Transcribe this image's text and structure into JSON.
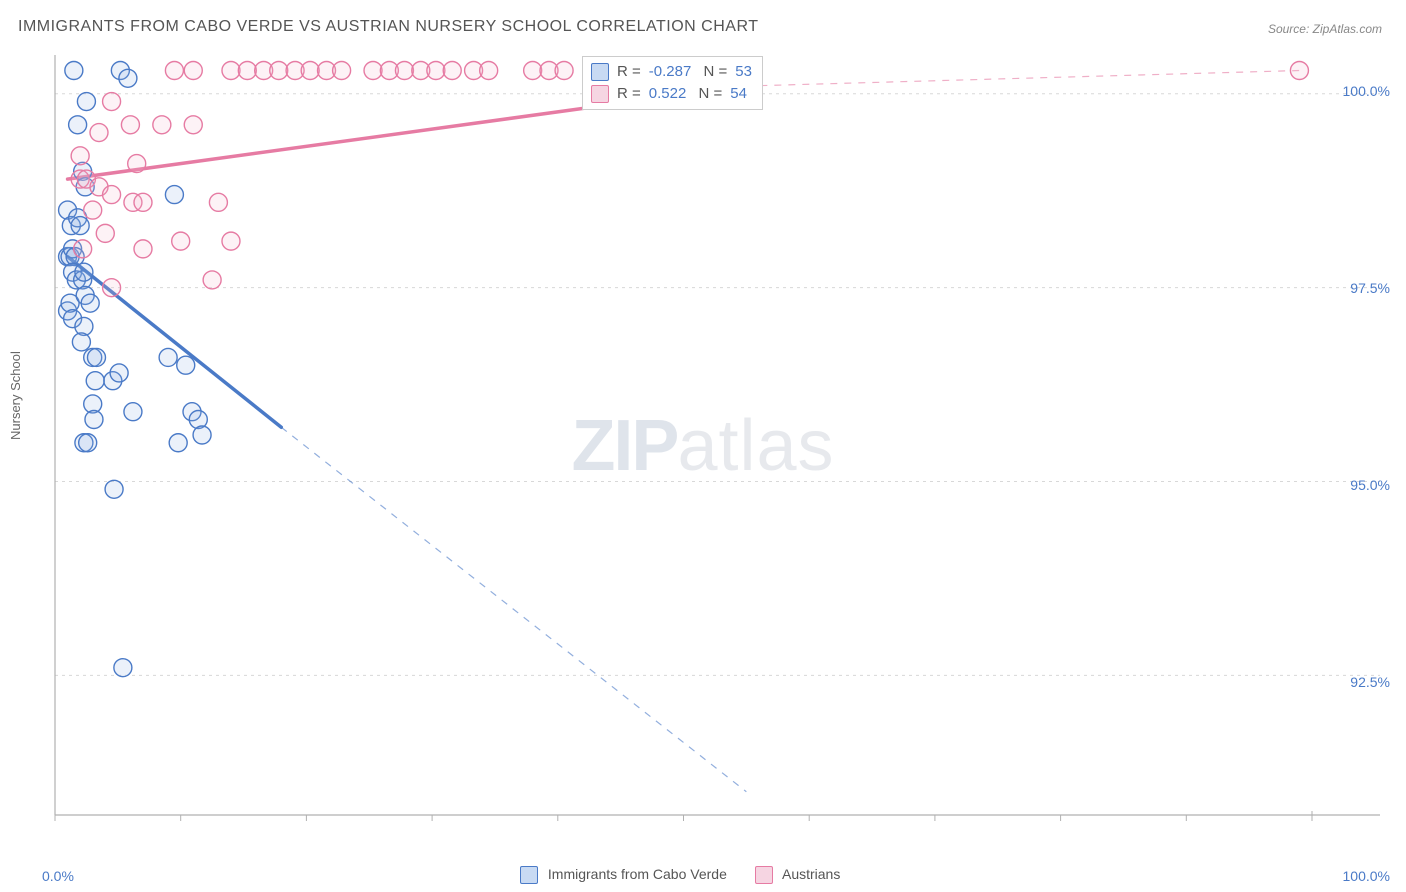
{
  "title": "IMMIGRANTS FROM CABO VERDE VS AUSTRIAN NURSERY SCHOOL CORRELATION CHART",
  "source": "Source: ZipAtlas.com",
  "ylabel": "Nursery School",
  "watermark": {
    "bold": "ZIP",
    "light": "atlas"
  },
  "chart": {
    "type": "scatter",
    "background_color": "#ffffff",
    "grid_color": "#d8d8d8",
    "axis_color": "#b0b0b0",
    "tick_color": "#4a7ac7",
    "xlim": [
      0,
      100
    ],
    "ylim": [
      90.7,
      100.5
    ],
    "yticks": [
      92.5,
      95.0,
      97.5,
      100.0
    ],
    "ytick_labels": [
      "92.5%",
      "95.0%",
      "97.5%",
      "100.0%"
    ],
    "xticks": [
      0,
      10,
      20,
      30,
      40,
      50,
      60,
      70,
      80,
      90,
      100
    ],
    "xtick_labels_shown": {
      "0": "0.0%",
      "100": "100.0%"
    },
    "marker_radius": 9,
    "marker_fill_opacity": 0.18,
    "marker_stroke_width": 1.4,
    "series": [
      {
        "name": "Immigrants from Cabo Verde",
        "color_stroke": "#4a7ac7",
        "color_fill": "#8fb0e6",
        "R": -0.287,
        "N": 53,
        "trend": {
          "solid_from": [
            1,
            97.9
          ],
          "solid_to": [
            18,
            95.7
          ],
          "dashed_to": [
            55,
            91.0
          ]
        },
        "points": [
          [
            1.5,
            100.3
          ],
          [
            5.2,
            100.3
          ],
          [
            5.8,
            100.2
          ],
          [
            2.5,
            99.9
          ],
          [
            1.8,
            99.6
          ],
          [
            2.2,
            99.0
          ],
          [
            2.4,
            98.8
          ],
          [
            1.0,
            98.5
          ],
          [
            1.3,
            98.3
          ],
          [
            1.8,
            98.4
          ],
          [
            2.0,
            98.3
          ],
          [
            1.0,
            97.9
          ],
          [
            1.2,
            97.9
          ],
          [
            1.4,
            98.0
          ],
          [
            1.6,
            97.9
          ],
          [
            1.4,
            97.7
          ],
          [
            1.7,
            97.6
          ],
          [
            2.2,
            97.6
          ],
          [
            2.3,
            97.7
          ],
          [
            1.0,
            97.2
          ],
          [
            1.2,
            97.3
          ],
          [
            1.4,
            97.1
          ],
          [
            2.4,
            97.4
          ],
          [
            2.8,
            97.3
          ],
          [
            2.3,
            97.0
          ],
          [
            2.1,
            96.8
          ],
          [
            9.5,
            98.7
          ],
          [
            3.0,
            96.6
          ],
          [
            3.3,
            96.6
          ],
          [
            9.0,
            96.6
          ],
          [
            3.2,
            96.3
          ],
          [
            4.6,
            96.3
          ],
          [
            5.1,
            96.4
          ],
          [
            10.4,
            96.5
          ],
          [
            3.0,
            96.0
          ],
          [
            3.1,
            95.8
          ],
          [
            6.2,
            95.9
          ],
          [
            10.9,
            95.9
          ],
          [
            11.4,
            95.8
          ],
          [
            2.3,
            95.5
          ],
          [
            2.6,
            95.5
          ],
          [
            9.8,
            95.5
          ],
          [
            11.7,
            95.6
          ],
          [
            4.7,
            94.9
          ],
          [
            5.4,
            92.6
          ]
        ]
      },
      {
        "name": "Austrians",
        "color_stroke": "#e67ba3",
        "color_fill": "#f4b6ce",
        "R": 0.522,
        "N": 54,
        "trend": {
          "solid_from": [
            1,
            98.9
          ],
          "solid_to": [
            55,
            100.1
          ],
          "dashed_to": [
            99,
            100.3
          ]
        },
        "points": [
          [
            9.5,
            100.3
          ],
          [
            11,
            100.3
          ],
          [
            14,
            100.3
          ],
          [
            15.3,
            100.3
          ],
          [
            16.6,
            100.3
          ],
          [
            17.8,
            100.3
          ],
          [
            19.1,
            100.3
          ],
          [
            20.3,
            100.3
          ],
          [
            21.6,
            100.3
          ],
          [
            22.8,
            100.3
          ],
          [
            25.3,
            100.3
          ],
          [
            26.6,
            100.3
          ],
          [
            27.8,
            100.3
          ],
          [
            29.1,
            100.3
          ],
          [
            30.3,
            100.3
          ],
          [
            31.6,
            100.3
          ],
          [
            33.3,
            100.3
          ],
          [
            34.5,
            100.3
          ],
          [
            38,
            100.3
          ],
          [
            39.3,
            100.3
          ],
          [
            40.5,
            100.3
          ],
          [
            48,
            100.3
          ],
          [
            49.3,
            100.3
          ],
          [
            54.2,
            100.3
          ],
          [
            55.4,
            100.3
          ],
          [
            99,
            100.3
          ],
          [
            4.5,
            99.9
          ],
          [
            3.5,
            99.5
          ],
          [
            6,
            99.6
          ],
          [
            8.5,
            99.6
          ],
          [
            11,
            99.6
          ],
          [
            2.0,
            99.2
          ],
          [
            6.5,
            99.1
          ],
          [
            2.0,
            98.9
          ],
          [
            2.5,
            98.9
          ],
          [
            3.5,
            98.8
          ],
          [
            4.5,
            98.7
          ],
          [
            6.2,
            98.6
          ],
          [
            7,
            98.6
          ],
          [
            13,
            98.6
          ],
          [
            3.0,
            98.5
          ],
          [
            4.0,
            98.2
          ],
          [
            2.2,
            98.0
          ],
          [
            7,
            98.0
          ],
          [
            10,
            98.1
          ],
          [
            14,
            98.1
          ],
          [
            4.5,
            97.5
          ],
          [
            12.5,
            97.6
          ]
        ]
      }
    ]
  },
  "bottom_legend": [
    {
      "label": "Immigrants from Cabo Verde",
      "fill": "#c8daf3",
      "stroke": "#4a7ac7"
    },
    {
      "label": "Austrians",
      "fill": "#f6d5e2",
      "stroke": "#e67ba3"
    }
  ],
  "stat_box": [
    {
      "fill": "#c8daf3",
      "stroke": "#4a7ac7",
      "R": "-0.287",
      "N": "53"
    },
    {
      "fill": "#f6d5e2",
      "stroke": "#e67ba3",
      "R": "0.522",
      "N": "54"
    }
  ]
}
